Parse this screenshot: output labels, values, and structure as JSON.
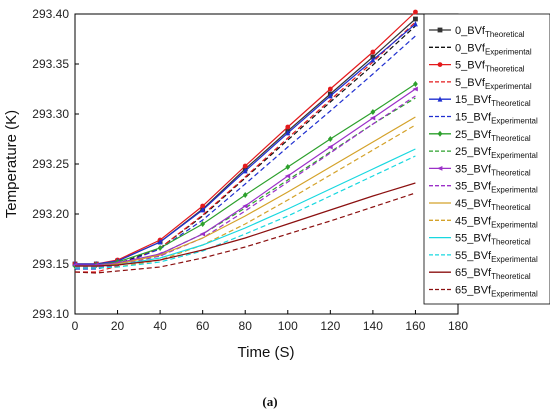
{
  "caption": "(a)",
  "chart_data": {
    "type": "line",
    "title": "",
    "xlabel": "Time (S)",
    "ylabel": "Temperature (K)",
    "xlim": [
      0,
      180
    ],
    "ylim": [
      293.1,
      293.4
    ],
    "x_ticks": [
      0,
      20,
      40,
      60,
      80,
      100,
      120,
      140,
      160,
      180
    ],
    "y_ticks": [
      293.1,
      293.15,
      293.2,
      293.25,
      293.3,
      293.35,
      293.4
    ],
    "x_tick_labels": [
      "0",
      "20",
      "40",
      "60",
      "80",
      "100",
      "120",
      "140",
      "160",
      "180"
    ],
    "y_tick_labels": [
      "293.10",
      "293.15",
      "293.20",
      "293.25",
      "293.30",
      "293.35",
      "293.40"
    ],
    "grid": false,
    "legend_position": "right",
    "x": [
      0,
      10,
      20,
      40,
      60,
      80,
      100,
      120,
      140,
      160
    ],
    "series": [
      {
        "name": "0_BVf",
        "subscript": "Theoretical",
        "color": "#333333",
        "style": "solid",
        "marker": "square",
        "values": [
          293.15,
          293.15,
          293.153,
          293.172,
          293.205,
          293.245,
          293.283,
          293.32,
          293.357,
          293.395
        ]
      },
      {
        "name": "0_BVf",
        "subscript": "Experimental",
        "color": "#111111",
        "style": "dashed",
        "marker": "none",
        "values": [
          293.145,
          293.146,
          293.15,
          293.166,
          293.198,
          293.236,
          293.274,
          293.312,
          293.349,
          293.388
        ]
      },
      {
        "name": "5_BVf",
        "subscript": "Theoretical",
        "color": "#e41a1c",
        "style": "solid",
        "marker": "circle",
        "values": [
          293.15,
          293.15,
          293.154,
          293.174,
          293.208,
          293.248,
          293.287,
          293.325,
          293.362,
          293.402
        ]
      },
      {
        "name": "5_BVf",
        "subscript": "Experimental",
        "color": "#e41a1c",
        "style": "dashed",
        "marker": "none",
        "values": [
          293.142,
          293.142,
          293.148,
          293.166,
          293.199,
          293.237,
          293.276,
          293.314,
          293.352,
          293.392
        ]
      },
      {
        "name": "15_BVf",
        "subscript": "Theoretical",
        "color": "#1f2fd0",
        "style": "solid",
        "marker": "triangle",
        "values": [
          293.15,
          293.15,
          293.153,
          293.172,
          293.204,
          293.243,
          293.281,
          293.318,
          293.354,
          293.39
        ]
      },
      {
        "name": "15_BVf",
        "subscript": "Experimental",
        "color": "#1f2fd0",
        "style": "dashed",
        "marker": "none",
        "values": [
          293.145,
          293.145,
          293.149,
          293.165,
          293.194,
          293.23,
          293.267,
          293.303,
          293.34,
          293.378
        ]
      },
      {
        "name": "25_BVf",
        "subscript": "Theoretical",
        "color": "#2ca02c",
        "style": "solid",
        "marker": "diamond",
        "values": [
          293.148,
          293.149,
          293.152,
          293.166,
          293.19,
          293.219,
          293.247,
          293.275,
          293.302,
          293.33
        ]
      },
      {
        "name": "25_BVf",
        "subscript": "Experimental",
        "color": "#2ca02c",
        "style": "dashed",
        "marker": "none",
        "values": [
          293.148,
          293.148,
          293.15,
          293.16,
          293.18,
          293.206,
          293.234,
          293.262,
          293.29,
          293.316
        ]
      },
      {
        "name": "35_BVf",
        "subscript": "Theoretical",
        "color": "#9b30c8",
        "style": "solid",
        "marker": "triangle-left",
        "values": [
          293.149,
          293.149,
          293.151,
          293.16,
          293.18,
          293.208,
          293.238,
          293.267,
          293.296,
          293.325
        ]
      },
      {
        "name": "35_BVf",
        "subscript": "Experimental",
        "color": "#9b30c8",
        "style": "dashed",
        "marker": "none",
        "values": [
          293.147,
          293.147,
          293.149,
          293.158,
          293.176,
          293.203,
          293.232,
          293.261,
          293.29,
          293.318
        ]
      },
      {
        "name": "45_BVf",
        "subscript": "Theoretical",
        "color": "#d4a22a",
        "style": "solid",
        "marker": "none",
        "values": [
          293.148,
          293.148,
          293.15,
          293.159,
          293.176,
          293.198,
          293.222,
          293.247,
          293.272,
          293.297
        ]
      },
      {
        "name": "45_BVf",
        "subscript": "Experimental",
        "color": "#d4a22a",
        "style": "dashed",
        "marker": "none",
        "values": [
          293.146,
          293.146,
          293.147,
          293.154,
          293.169,
          293.19,
          293.214,
          293.239,
          293.264,
          293.289
        ]
      },
      {
        "name": "55_BVf",
        "subscript": "Theoretical",
        "color": "#18d8e0",
        "style": "solid",
        "marker": "none",
        "values": [
          293.148,
          293.148,
          293.149,
          293.156,
          293.169,
          293.186,
          293.205,
          293.225,
          293.245,
          293.265
        ]
      },
      {
        "name": "55_BVf",
        "subscript": "Experimental",
        "color": "#18d8e0",
        "style": "dashed",
        "marker": "none",
        "values": [
          293.146,
          293.146,
          293.147,
          293.152,
          293.163,
          293.18,
          293.198,
          293.218,
          293.238,
          293.258
        ]
      },
      {
        "name": "65_BVf",
        "subscript": "Theoretical",
        "color": "#8b1010",
        "style": "solid",
        "marker": "none",
        "values": [
          293.148,
          293.148,
          293.149,
          293.154,
          293.164,
          293.176,
          293.19,
          293.204,
          293.218,
          293.231
        ]
      },
      {
        "name": "65_BVf",
        "subscript": "Experimental",
        "color": "#8b1010",
        "style": "dashed",
        "marker": "none",
        "values": [
          293.142,
          293.141,
          293.143,
          293.147,
          293.156,
          293.167,
          293.18,
          293.193,
          293.207,
          293.221
        ]
      }
    ]
  }
}
